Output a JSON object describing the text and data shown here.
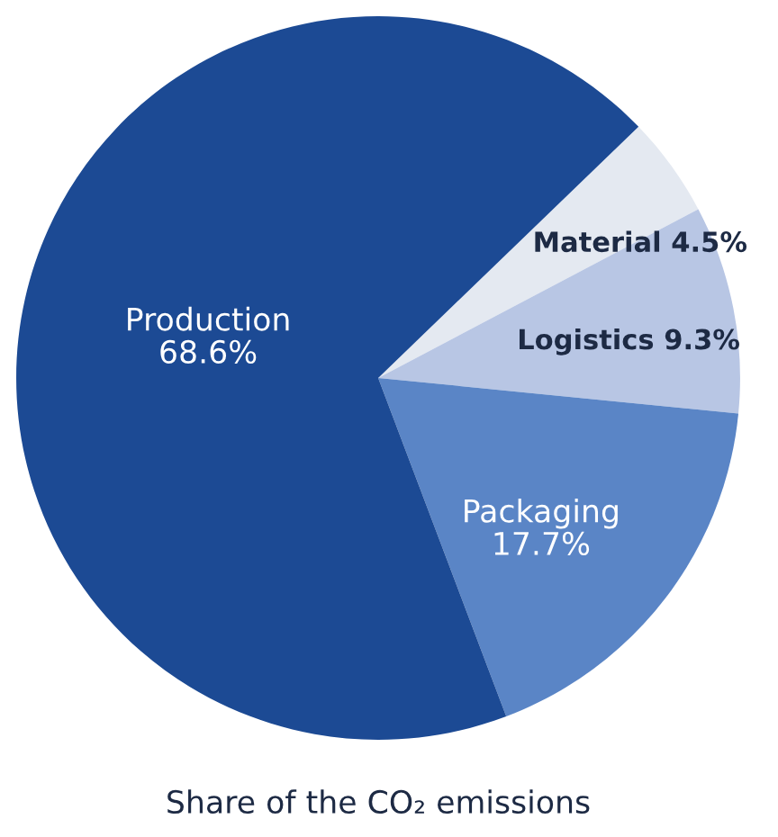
{
  "chart_data": {
    "type": "pie",
    "title": "Share of the CO₂ emissions",
    "categories": [
      "Material",
      "Logistics",
      "Packaging",
      "Production"
    ],
    "values": [
      4.5,
      9.3,
      17.7,
      68.6
    ],
    "value_labels": [
      "4.5%",
      "9.3%",
      "17.7%",
      "68.6%"
    ],
    "colors": [
      "#e4e9f1",
      "#b8c6e4",
      "#5a85c6",
      "#1c4a94"
    ]
  }
}
